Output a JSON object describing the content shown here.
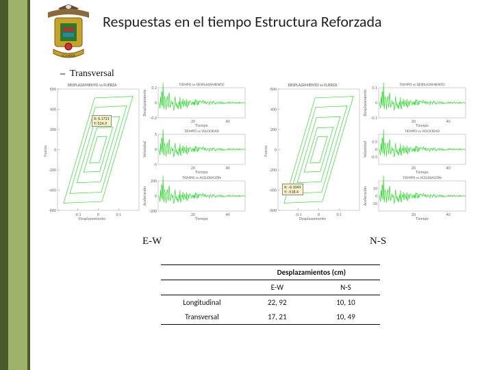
{
  "title": "Respuestas en el tiempo Estructura Reforzada",
  "subtitle_dash": "–",
  "subtitle": "Transversal",
  "labels": {
    "ew": "E-W",
    "ns": "N-S"
  },
  "charts_ew": {
    "hysteresis": {
      "title": "DESPLAZAMIENTO vs FUERZA",
      "xlabel": "Desplazamiento",
      "ylabel": "Fuerza",
      "xlim": [
        -0.2,
        0.2
      ],
      "xticks": [
        -0.1,
        0,
        0.1
      ],
      "ylim": [
        -600,
        600
      ],
      "yticks": [
        -600,
        -400,
        -200,
        0,
        200,
        400,
        600
      ],
      "annot": "X: 0.1721\nY: 524.9",
      "lines": [
        [
          [
            -0.17,
            -535
          ],
          [
            -0.02,
            525
          ],
          [
            0.17,
            545
          ]
        ],
        [
          [
            -0.17,
            -545
          ],
          [
            0.02,
            -525
          ],
          [
            0.17,
            535
          ]
        ]
      ]
    },
    "ts": [
      {
        "title": "TIEMPO vs DESPLAZAMIENTO",
        "ylabel": "Desplazamiento",
        "xlabel": "Tiempo",
        "xticks": [
          20,
          40
        ],
        "ylim": [
          -0.2,
          0.2
        ],
        "yticks": [
          -0.2,
          0,
          0.2
        ]
      },
      {
        "title": "TIEMPO vs VELOCIDAD",
        "ylabel": "Velocidad",
        "xlabel": "Tiempo",
        "xticks": [
          20,
          40
        ],
        "ylim": [
          -5,
          5
        ],
        "yticks": [
          -5,
          0,
          5
        ]
      },
      {
        "title": "TIEMPO vs ACELERACIÓN",
        "ylabel": "Aceleración",
        "xlabel": "Tiempo",
        "xticks": [
          20,
          40
        ],
        "ylim": [
          -200,
          200
        ],
        "yticks": [
          -200,
          0,
          200
        ]
      }
    ]
  },
  "charts_ns": {
    "hysteresis": {
      "title": "DESPLAZAMIENTO vs FUERZA",
      "xlabel": "Desplazamiento",
      "ylabel": "Fuerza",
      "xlim": [
        -0.2,
        0.2
      ],
      "xticks": [
        -0.1,
        0,
        0.1
      ],
      "ylim": [
        -600,
        600
      ],
      "yticks": [
        -600,
        -400,
        -200,
        0,
        200,
        400,
        600
      ],
      "annot": "X: -0.1049\nY: -518.4",
      "lines": [
        [
          [
            -0.1,
            -530
          ],
          [
            -0.01,
            510
          ],
          [
            0.1,
            530
          ]
        ],
        [
          [
            -0.1,
            -520
          ],
          [
            0.01,
            -510
          ],
          [
            0.1,
            520
          ]
        ]
      ]
    },
    "ts": [
      {
        "title": "TIEMPO vs DESPLAZAMIENTO",
        "ylabel": "Desplazamiento",
        "xlabel": "Tiempo",
        "xticks": [
          20,
          40
        ],
        "ylim": [
          -0.1,
          0.1
        ],
        "yticks": [
          -0.1,
          0,
          0.1
        ]
      },
      {
        "title": "TIEMPO vs VELOCIDAD",
        "ylabel": "Velocidad",
        "xlabel": "Tiempo",
        "xticks": [
          20,
          40
        ],
        "ylim": [
          -1,
          1
        ],
        "yticks": [
          -0.5,
          0,
          0.5
        ]
      },
      {
        "title": "TIEMPO vs ACELERACIÓN",
        "ylabel": "Aceleración",
        "xlabel": "Tiempo",
        "xticks": [
          20,
          40
        ],
        "ylim": [
          -20,
          20
        ],
        "yticks": [
          -10,
          0,
          10
        ]
      }
    ]
  },
  "table": {
    "header": "Desplazamientos (cm)",
    "cols": [
      "E-W",
      "N-S"
    ],
    "rows": [
      {
        "label": "Longitudinal",
        "ew": "22, 92",
        "ns": "10, 10"
      },
      {
        "label": "Transversal",
        "ew": "17, 21",
        "ns": "10, 49"
      }
    ]
  },
  "colors": {
    "line_green": "#2bdd2b",
    "axis": "#888",
    "grid": "#d5d5d5"
  }
}
